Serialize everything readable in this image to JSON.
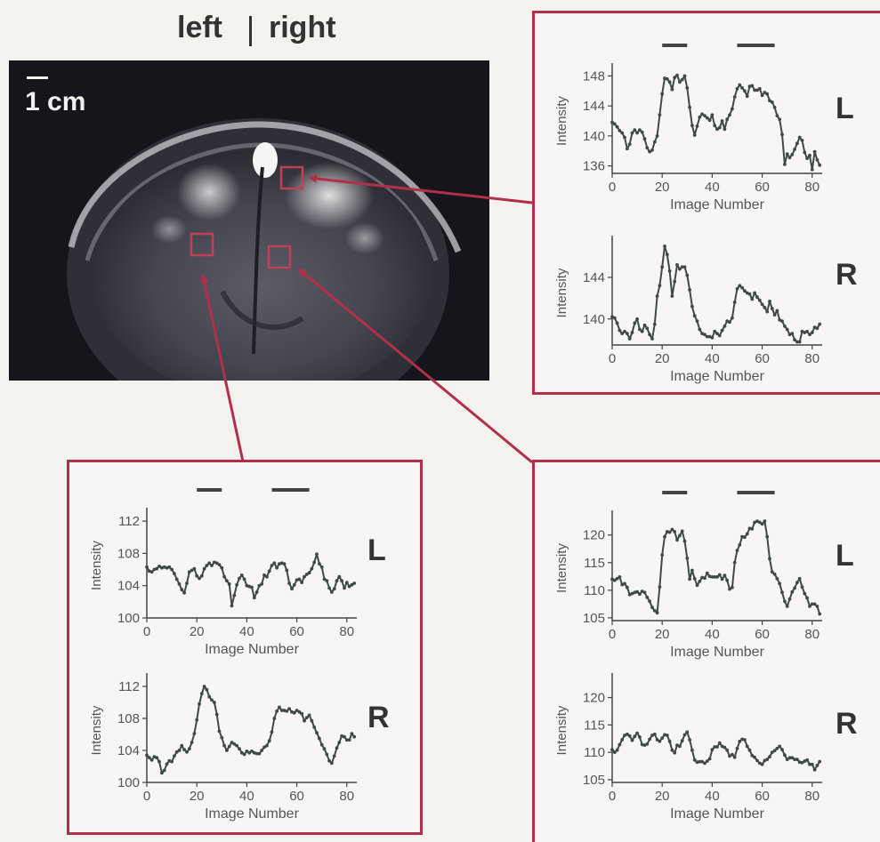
{
  "header": {
    "left_label": "left",
    "right_label": "right"
  },
  "image": {
    "scale_label": "1 cm"
  },
  "colors": {
    "frame": "#b03049",
    "trace": "#3f4a44",
    "axis": "#444444",
    "bar": "#444444"
  },
  "chart_data": [
    {
      "type": "line",
      "panel": "upper-right",
      "hemisphere": "L",
      "xlabel": "Image Number",
      "ylabel": "Intensity",
      "xlim": [
        0,
        84
      ],
      "ylim": [
        135,
        149
      ],
      "xticks": [
        "0",
        "20",
        "40",
        "60",
        "80"
      ],
      "yticks": [
        "136",
        "140",
        "144",
        "148"
      ],
      "stimulus_bars": [
        [
          20,
          30
        ],
        [
          50,
          65
        ]
      ],
      "x": [
        0,
        1,
        2,
        3,
        4,
        5,
        6,
        7,
        8,
        9,
        10,
        11,
        12,
        13,
        14,
        15,
        16,
        17,
        18,
        19,
        20,
        21,
        22,
        23,
        24,
        25,
        26,
        27,
        28,
        29,
        30,
        31,
        32,
        33,
        34,
        35,
        36,
        37,
        38,
        39,
        40,
        41,
        42,
        43,
        44,
        45,
        46,
        47,
        48,
        49,
        50,
        51,
        52,
        53,
        54,
        55,
        56,
        57,
        58,
        59,
        60,
        61,
        62,
        63,
        64,
        65,
        66,
        67,
        68,
        69,
        70,
        71,
        72,
        73,
        74,
        75,
        76,
        77,
        78,
        79,
        80,
        81,
        82,
        83
      ],
      "y": [
        141.8,
        141.6,
        141.2,
        140.7,
        140.4,
        139.8,
        138.3,
        138.9,
        140.4,
        140.8,
        140.4,
        140.8,
        140.5,
        139.6,
        138.4,
        137.9,
        138.1,
        139.2,
        140.0,
        142.8,
        145.6,
        147.7,
        147.6,
        147.2,
        146.2,
        147.8,
        148.1,
        147.2,
        147.5,
        148.0,
        146.4,
        143.8,
        141.4,
        140.1,
        141.3,
        142.5,
        142.9,
        142.7,
        142.4,
        142.1,
        142.8,
        141.4,
        140.9,
        141.1,
        142.0,
        140.9,
        142.2,
        142.8,
        143.6,
        145.2,
        146.3,
        146.8,
        146.4,
        146.0,
        145.3,
        146.6,
        146.7,
        146.1,
        146.1,
        146.3,
        145.4,
        145.8,
        145.6,
        144.7,
        144.5,
        143.8,
        142.7,
        142.2,
        140.2,
        136.2,
        137.6,
        137.1,
        137.5,
        138.2,
        139.0,
        139.8,
        139.4,
        137.8,
        137.0,
        137.4,
        135.5,
        137.9,
        136.8,
        136.1
      ]
    },
    {
      "type": "line",
      "panel": "upper-right",
      "hemisphere": "R",
      "xlabel": "Image Number",
      "ylabel": "Intensity",
      "xlim": [
        0,
        84
      ],
      "ylim": [
        137.5,
        147.5
      ],
      "xticks": [
        "0",
        "20",
        "40",
        "60",
        "80"
      ],
      "yticks": [
        "140",
        "144"
      ],
      "x": [
        0,
        1,
        2,
        3,
        4,
        5,
        6,
        7,
        8,
        9,
        10,
        11,
        12,
        13,
        14,
        15,
        16,
        17,
        18,
        19,
        20,
        21,
        22,
        23,
        24,
        25,
        26,
        27,
        28,
        29,
        30,
        31,
        32,
        33,
        34,
        35,
        36,
        37,
        38,
        39,
        40,
        41,
        42,
        43,
        44,
        45,
        46,
        47,
        48,
        49,
        50,
        51,
        52,
        53,
        54,
        55,
        56,
        57,
        58,
        59,
        60,
        61,
        62,
        63,
        64,
        65,
        66,
        67,
        68,
        69,
        70,
        71,
        72,
        73,
        74,
        75,
        76,
        77,
        78,
        79,
        80,
        81,
        82,
        83
      ],
      "y": [
        140.2,
        140.1,
        139.6,
        138.9,
        138.6,
        138.8,
        138.6,
        138.1,
        138.7,
        139.6,
        140.0,
        139.0,
        138.8,
        139.4,
        139.1,
        138.5,
        138.1,
        139.5,
        142.2,
        143.2,
        145.0,
        147.0,
        146.2,
        144.6,
        142.2,
        143.6,
        145.2,
        144.8,
        145.0,
        145.0,
        144.2,
        142.8,
        141.2,
        140.3,
        139.8,
        139.0,
        138.6,
        138.5,
        138.3,
        138.3,
        138.2,
        138.8,
        138.6,
        138.4,
        138.9,
        139.3,
        139.8,
        139.7,
        140.1,
        141.6,
        142.9,
        143.2,
        143.0,
        142.7,
        142.5,
        142.4,
        141.9,
        142.5,
        142.1,
        141.8,
        141.4,
        141.1,
        140.7,
        141.7,
        141.0,
        140.4,
        140.8,
        139.9,
        139.8,
        139.3,
        139.0,
        138.5,
        138.6,
        138.0,
        137.8,
        137.8,
        138.8,
        138.7,
        138.8,
        138.5,
        138.7,
        139.2,
        139.1,
        139.5
      ]
    },
    {
      "type": "line",
      "panel": "lower-left",
      "hemisphere": "L",
      "xlabel": "Image Number",
      "ylabel": "Intensity",
      "xlim": [
        0,
        84
      ],
      "ylim": [
        100,
        113
      ],
      "xticks": [
        "0",
        "20",
        "40",
        "60",
        "80"
      ],
      "yticks": [
        "100",
        "104",
        "108",
        "112"
      ],
      "stimulus_bars": [
        [
          20,
          30
        ],
        [
          50,
          65
        ]
      ],
      "x": [
        0,
        1,
        2,
        3,
        4,
        5,
        6,
        7,
        8,
        9,
        10,
        11,
        12,
        13,
        14,
        15,
        16,
        17,
        18,
        19,
        20,
        21,
        22,
        23,
        24,
        25,
        26,
        27,
        28,
        29,
        30,
        31,
        32,
        33,
        34,
        35,
        36,
        37,
        38,
        39,
        40,
        41,
        42,
        43,
        44,
        45,
        46,
        47,
        48,
        49,
        50,
        51,
        52,
        53,
        54,
        55,
        56,
        57,
        58,
        59,
        60,
        61,
        62,
        63,
        64,
        65,
        66,
        67,
        68,
        69,
        70,
        71,
        72,
        73,
        74,
        75,
        76,
        77,
        78,
        79,
        80,
        81,
        82,
        83
      ],
      "y": [
        106.3,
        105.8,
        105.7,
        106.0,
        106.1,
        106.4,
        106.2,
        106.3,
        106.2,
        106.3,
        106.0,
        105.5,
        104.8,
        104.2,
        103.5,
        103.1,
        104.3,
        105.7,
        105.9,
        106.1,
        105.2,
        104.9,
        105.2,
        106.1,
        106.5,
        106.8,
        106.5,
        106.9,
        106.8,
        106.6,
        106.2,
        105.1,
        104.6,
        104.2,
        101.5,
        102.8,
        104.1,
        104.9,
        105.3,
        104.8,
        104.0,
        103.9,
        103.8,
        102.5,
        103.2,
        104.0,
        104.2,
        105.3,
        105.1,
        105.8,
        106.5,
        106.8,
        106.2,
        106.7,
        106.8,
        106.7,
        105.9,
        104.3,
        103.6,
        104.1,
        104.7,
        104.8,
        104.4,
        105.1,
        105.4,
        105.6,
        106.1,
        106.9,
        107.9,
        106.7,
        106.3,
        104.8,
        104.6,
        103.7,
        103.2,
        103.6,
        104.6,
        105.1,
        104.6,
        103.7,
        104.4,
        103.9,
        104.1,
        104.3
      ]
    },
    {
      "type": "line",
      "panel": "lower-left",
      "hemisphere": "R",
      "xlabel": "Image Number",
      "ylabel": "Intensity",
      "xlim": [
        0,
        84
      ],
      "ylim": [
        100,
        113
      ],
      "xticks": [
        "0",
        "20",
        "40",
        "60",
        "80"
      ],
      "yticks": [
        "100",
        "104",
        "108",
        "112"
      ],
      "x": [
        0,
        1,
        2,
        3,
        4,
        5,
        6,
        7,
        8,
        9,
        10,
        11,
        12,
        13,
        14,
        15,
        16,
        17,
        18,
        19,
        20,
        21,
        22,
        23,
        24,
        25,
        26,
        27,
        28,
        29,
        30,
        31,
        32,
        33,
        34,
        35,
        36,
        37,
        38,
        39,
        40,
        41,
        42,
        43,
        44,
        45,
        46,
        47,
        48,
        49,
        50,
        51,
        52,
        53,
        54,
        55,
        56,
        57,
        58,
        59,
        60,
        61,
        62,
        63,
        64,
        65,
        66,
        67,
        68,
        69,
        70,
        71,
        72,
        73,
        74,
        75,
        76,
        77,
        78,
        79,
        80,
        81,
        82,
        83
      ],
      "y": [
        103.4,
        103.1,
        102.8,
        103.2,
        103.1,
        102.6,
        101.2,
        101.5,
        102.3,
        102.7,
        102.6,
        103.3,
        103.8,
        104.0,
        104.6,
        104.1,
        103.8,
        104.2,
        105.0,
        106.1,
        107.8,
        109.8,
        111.1,
        112.0,
        111.6,
        110.7,
        110.3,
        110.0,
        108.5,
        106.4,
        105.6,
        104.6,
        104.0,
        104.5,
        105.0,
        104.8,
        104.6,
        104.2,
        103.7,
        103.5,
        103.9,
        103.7,
        103.9,
        103.7,
        103.6,
        103.6,
        104.0,
        104.4,
        104.6,
        105.2,
        106.3,
        108.0,
        108.9,
        109.4,
        109.0,
        109.0,
        108.9,
        109.2,
        108.8,
        108.7,
        109.0,
        108.8,
        108.6,
        107.7,
        108.1,
        108.4,
        107.7,
        106.9,
        106.2,
        105.5,
        104.7,
        104.2,
        103.5,
        102.7,
        102.4,
        103.3,
        104.3,
        105.0,
        105.8,
        105.7,
        105.3,
        105.3,
        106.1,
        105.7
      ]
    },
    {
      "type": "line",
      "panel": "lower-right",
      "hemisphere": "L",
      "xlabel": "Image Number",
      "ylabel": "Intensity",
      "xlim": [
        0,
        84
      ],
      "ylim": [
        104.5,
        123.5
      ],
      "xticks": [
        "0",
        "20",
        "40",
        "60",
        "80"
      ],
      "yticks": [
        "105",
        "110",
        "115",
        "120"
      ],
      "stimulus_bars": [
        [
          20,
          30
        ],
        [
          50,
          65
        ]
      ],
      "x": [
        0,
        1,
        2,
        3,
        4,
        5,
        6,
        7,
        8,
        9,
        10,
        11,
        12,
        13,
        14,
        15,
        16,
        17,
        18,
        19,
        20,
        21,
        22,
        23,
        24,
        25,
        26,
        27,
        28,
        29,
        30,
        31,
        32,
        33,
        34,
        35,
        36,
        37,
        38,
        39,
        40,
        41,
        42,
        43,
        44,
        45,
        46,
        47,
        48,
        49,
        50,
        51,
        52,
        53,
        54,
        55,
        56,
        57,
        58,
        59,
        60,
        61,
        62,
        63,
        64,
        65,
        66,
        67,
        68,
        69,
        70,
        71,
        72,
        73,
        74,
        75,
        76,
        77,
        78,
        79,
        80,
        81,
        82,
        83
      ],
      "y": [
        112.0,
        111.8,
        112.1,
        112.4,
        111.0,
        111.2,
        110.5,
        109.2,
        109.4,
        109.6,
        109.7,
        109.3,
        109.8,
        109.6,
        108.7,
        108.0,
        106.9,
        106.3,
        105.9,
        110.6,
        116.4,
        119.7,
        120.6,
        120.5,
        121.0,
        120.6,
        119.1,
        119.9,
        120.7,
        118.9,
        115.8,
        112.0,
        113.6,
        112.1,
        110.9,
        111.6,
        112.3,
        112.2,
        113.1,
        112.5,
        112.4,
        112.4,
        112.4,
        112.8,
        112.0,
        112.7,
        111.8,
        110.2,
        110.5,
        115.0,
        117.2,
        118.2,
        119.7,
        119.6,
        120.2,
        121.2,
        121.1,
        122.3,
        122.5,
        122.3,
        122.0,
        122.5,
        119.7,
        115.7,
        113.3,
        112.9,
        112.1,
        111.2,
        109.6,
        108.0,
        107.1,
        108.4,
        109.7,
        110.4,
        111.4,
        112.1,
        110.6,
        109.4,
        108.6,
        107.1,
        107.5,
        107.5,
        107.1,
        105.7
      ]
    },
    {
      "type": "line",
      "panel": "lower-right",
      "hemisphere": "R",
      "xlabel": "Image Number",
      "ylabel": "Intensity",
      "xlim": [
        0,
        84
      ],
      "ylim": [
        104.5,
        123.5
      ],
      "xticks": [
        "0",
        "20",
        "40",
        "60",
        "80"
      ],
      "yticks": [
        "105",
        "110",
        "115",
        "120"
      ],
      "x": [
        0,
        1,
        2,
        3,
        4,
        5,
        6,
        7,
        8,
        9,
        10,
        11,
        12,
        13,
        14,
        15,
        16,
        17,
        18,
        19,
        20,
        21,
        22,
        23,
        24,
        25,
        26,
        27,
        28,
        29,
        30,
        31,
        32,
        33,
        34,
        35,
        36,
        37,
        38,
        39,
        40,
        41,
        42,
        43,
        44,
        45,
        46,
        47,
        48,
        49,
        50,
        51,
        52,
        53,
        54,
        55,
        56,
        57,
        58,
        59,
        60,
        61,
        62,
        63,
        64,
        65,
        66,
        67,
        68,
        69,
        70,
        71,
        72,
        73,
        74,
        75,
        76,
        77,
        78,
        79,
        80,
        81,
        82,
        83
      ],
      "y": [
        110.5,
        110.0,
        110.4,
        111.4,
        112.3,
        113.1,
        113.3,
        113.0,
        112.2,
        112.9,
        113.5,
        112.8,
        111.4,
        111.3,
        111.5,
        112.4,
        113.1,
        113.3,
        112.3,
        112.0,
        112.6,
        113.2,
        113.1,
        112.0,
        110.4,
        109.9,
        111.3,
        111.1,
        112.1,
        113.2,
        113.7,
        112.3,
        110.4,
        108.6,
        108.2,
        108.3,
        108.3,
        108.0,
        108.4,
        108.8,
        110.5,
        111.0,
        111.0,
        111.7,
        111.1,
        110.9,
        110.4,
        109.3,
        109.6,
        109.1,
        110.7,
        112.0,
        112.4,
        112.3,
        111.1,
        110.4,
        109.4,
        109.1,
        108.5,
        108.0,
        107.8,
        108.5,
        108.7,
        109.2,
        110.0,
        110.3,
        110.7,
        111.1,
        110.5,
        109.5,
        108.7,
        109.0,
        109.0,
        108.7,
        108.7,
        108.2,
        108.1,
        108.4,
        108.6,
        107.8,
        107.8,
        106.8,
        107.6,
        108.3
      ]
    }
  ]
}
